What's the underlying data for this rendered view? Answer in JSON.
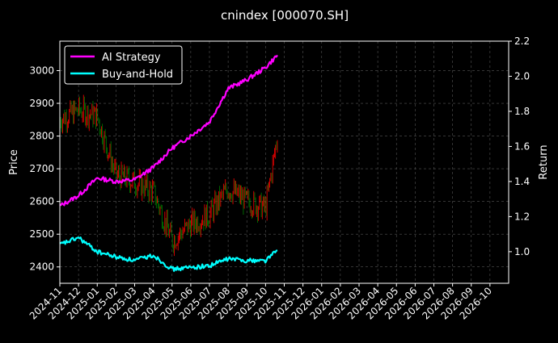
{
  "chart_data": {
    "type": "line",
    "title": "cnindex [000070.SH]",
    "ylabel_left": "Price",
    "ylabel_right": "Return",
    "grid": true,
    "legend_placement": "top-left",
    "colors": {
      "background": "#000000",
      "text": "#ffffff",
      "grid": "#555555",
      "candle_up": "#ff0000",
      "candle_down": "#008000",
      "strategy": "#ff00ff",
      "buyhold": "#00ffff"
    },
    "x_ticks": [
      "2024-11",
      "2024-12",
      "2025-01",
      "2025-02",
      "2025-03",
      "2025-04",
      "2025-05",
      "2025-06",
      "2025-07",
      "2025-08",
      "2025-09",
      "2025-10",
      "2025-11",
      "2025-12",
      "2026-01",
      "2026-02",
      "2026-03",
      "2026-04",
      "2026-05",
      "2026-06",
      "2026-07",
      "2026-08",
      "2026-09",
      "2026-10"
    ],
    "xlim": [
      "2024-11",
      "2026-11"
    ],
    "y_left": {
      "ticks": [
        2400,
        2500,
        2600,
        2700,
        2800,
        2900,
        3000
      ],
      "lim": [
        2350,
        3090
      ]
    },
    "y_right": {
      "ticks": [
        1.0,
        1.2,
        1.4,
        1.6,
        1.8,
        2.0,
        2.2
      ],
      "lim": [
        0.82,
        2.2
      ]
    },
    "price_series": {
      "name": "Price",
      "x": [
        "2024-11",
        "2024-12",
        "2025-01",
        "2025-02",
        "2025-03",
        "2025-04",
        "2025-05",
        "2025-06",
        "2025-07",
        "2025-08",
        "2025-09",
        "2025-10",
        "2025-10-20"
      ],
      "close": [
        2850,
        2880,
        2860,
        2680,
        2660,
        2630,
        2480,
        2530,
        2560,
        2640,
        2600,
        2580,
        2800
      ]
    },
    "series": [
      {
        "name": "AI Strategy",
        "x": [
          "2024-11",
          "2024-12",
          "2025-01",
          "2025-02",
          "2025-03",
          "2025-04",
          "2025-05",
          "2025-06",
          "2025-07",
          "2025-08",
          "2025-09",
          "2025-10",
          "2025-10-20"
        ],
        "values": [
          1.26,
          1.32,
          1.42,
          1.4,
          1.41,
          1.48,
          1.59,
          1.66,
          1.74,
          1.93,
          1.98,
          2.05,
          2.12
        ]
      },
      {
        "name": "Buy-and-Hold",
        "x": [
          "2024-11",
          "2024-12",
          "2025-01",
          "2025-02",
          "2025-03",
          "2025-04",
          "2025-05",
          "2025-06",
          "2025-07",
          "2025-08",
          "2025-09",
          "2025-10",
          "2025-10-20"
        ],
        "values": [
          1.04,
          1.08,
          1.0,
          0.97,
          0.95,
          0.98,
          0.9,
          0.91,
          0.92,
          0.96,
          0.95,
          0.95,
          1.01
        ]
      }
    ]
  }
}
